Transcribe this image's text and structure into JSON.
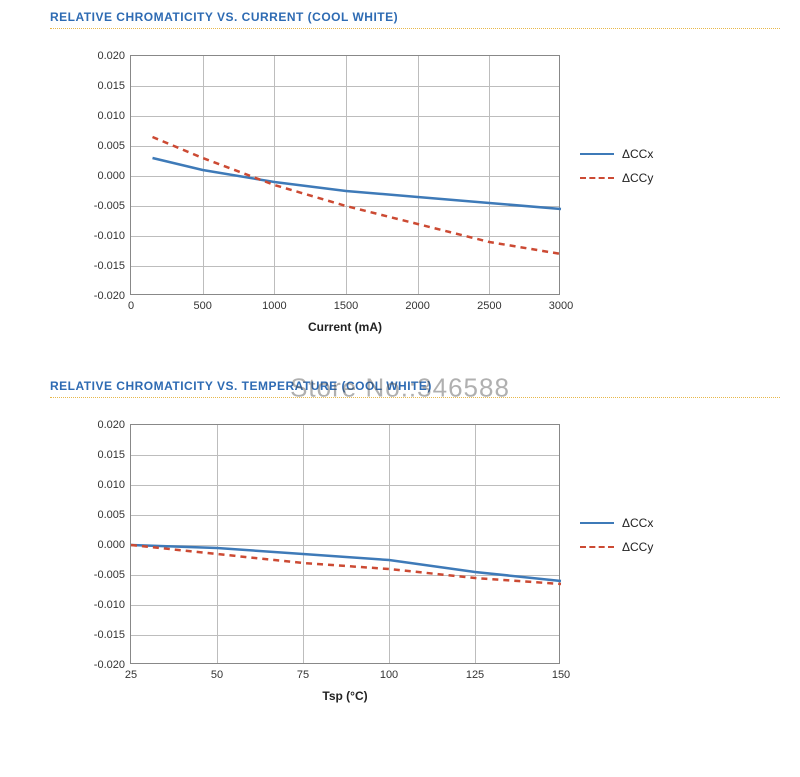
{
  "watermark_text": "Store No.:346588",
  "charts": [
    {
      "title": "RELATIVE CHROMATICITY VS. CURRENT (COOL WHITE)",
      "xlabel": "Current (mA)",
      "xlim": [
        0,
        3000
      ],
      "xtick_step": 500,
      "xticks": [
        "0",
        "500",
        "1000",
        "1500",
        "2000",
        "2500",
        "3000"
      ],
      "ylim": [
        -0.02,
        0.02
      ],
      "ytick_step": 0.005,
      "yticks": [
        "0.020",
        "0.015",
        "0.010",
        "0.005",
        "0.000",
        "-0.005",
        "-0.010",
        "-0.015",
        "-0.020"
      ],
      "title_color": "#2e6bb3",
      "title_fontsize": 12,
      "label_fontsize": 12,
      "tick_fontsize": 11,
      "grid_color": "#bdbdbd",
      "border_color": "#888888",
      "background_color": "#ffffff",
      "underline_color": "#e8b84a",
      "legend_position": "right",
      "series": [
        {
          "name": "ΔCCx",
          "color": "#3e7ab8",
          "dash": "solid",
          "line_width": 2.5,
          "points": [
            [
              150,
              0.003
            ],
            [
              500,
              0.001
            ],
            [
              1000,
              -0.001
            ],
            [
              1500,
              -0.0025
            ],
            [
              2000,
              -0.0035
            ],
            [
              2500,
              -0.0045
            ],
            [
              3000,
              -0.0055
            ]
          ]
        },
        {
          "name": "ΔCCy",
          "color": "#cc4a33",
          "dash": "6,5",
          "line_width": 2.5,
          "points": [
            [
              150,
              0.0065
            ],
            [
              500,
              0.003
            ],
            [
              1000,
              -0.0015
            ],
            [
              1500,
              -0.005
            ],
            [
              2000,
              -0.008
            ],
            [
              2500,
              -0.011
            ],
            [
              3000,
              -0.013
            ]
          ]
        }
      ]
    },
    {
      "title": "RELATIVE CHROMATICITY VS. TEMPERATURE (COOL WHITE)",
      "xlabel": "Tsp (°C)",
      "xlim": [
        25,
        150
      ],
      "xtick_step": 25,
      "xticks": [
        "25",
        "50",
        "75",
        "100",
        "125",
        "150"
      ],
      "ylim": [
        -0.02,
        0.02
      ],
      "ytick_step": 0.005,
      "yticks": [
        "0.020",
        "0.015",
        "0.010",
        "0.005",
        "0.000",
        "-0.005",
        "-0.010",
        "-0.015",
        "-0.020"
      ],
      "title_color": "#2e6bb3",
      "title_fontsize": 12,
      "label_fontsize": 12,
      "tick_fontsize": 11,
      "grid_color": "#bdbdbd",
      "border_color": "#888888",
      "background_color": "#ffffff",
      "underline_color": "#e8b84a",
      "legend_position": "right",
      "series": [
        {
          "name": "ΔCCx",
          "color": "#3e7ab8",
          "dash": "solid",
          "line_width": 2.5,
          "points": [
            [
              25,
              0.0
            ],
            [
              50,
              -0.0005
            ],
            [
              75,
              -0.0015
            ],
            [
              100,
              -0.0025
            ],
            [
              125,
              -0.0045
            ],
            [
              150,
              -0.006
            ]
          ]
        },
        {
          "name": "ΔCCy",
          "color": "#cc4a33",
          "dash": "6,5",
          "line_width": 2.5,
          "points": [
            [
              25,
              0.0
            ],
            [
              50,
              -0.0015
            ],
            [
              75,
              -0.003
            ],
            [
              100,
              -0.004
            ],
            [
              125,
              -0.0055
            ],
            [
              150,
              -0.0065
            ]
          ]
        }
      ]
    }
  ]
}
